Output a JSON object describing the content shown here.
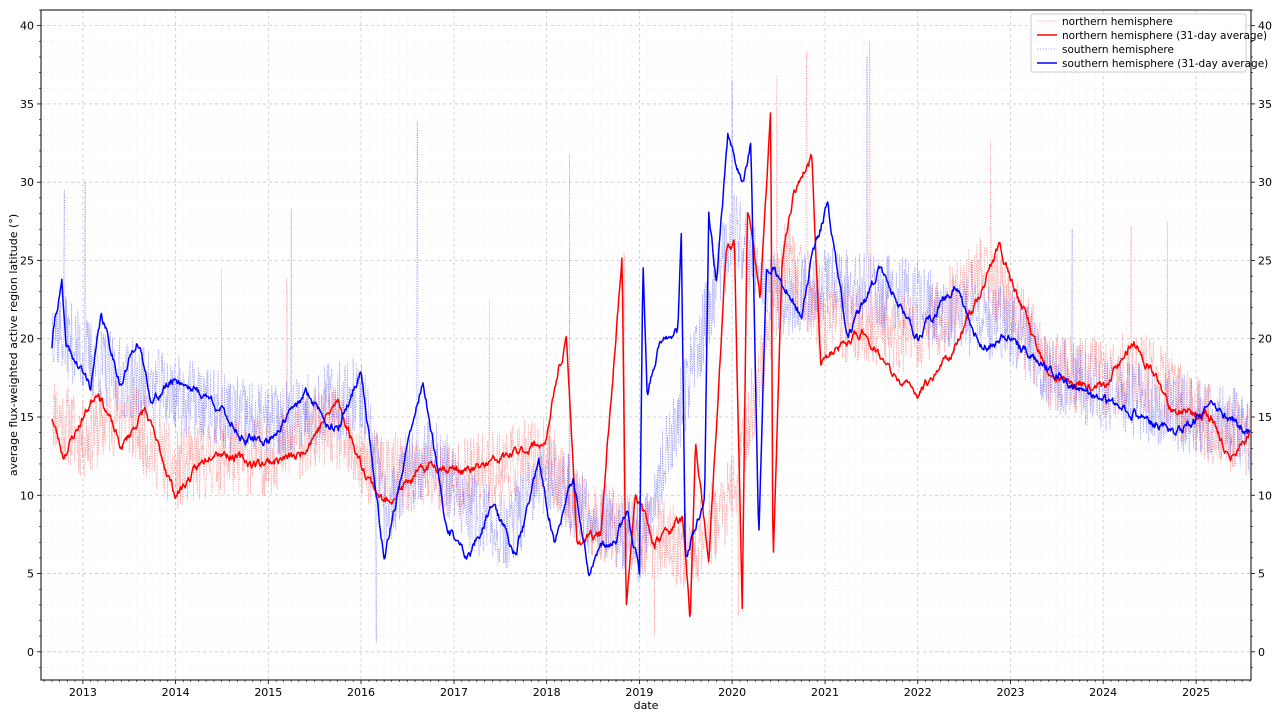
{
  "chart_data": {
    "type": "line",
    "title": "",
    "xlabel": "date",
    "ylabel": "average flux-weighted active region latitude (°)",
    "xlim": [
      "2012-07-20",
      "2025-08-05"
    ],
    "ylim": [
      -1.8,
      41
    ],
    "grid": true,
    "legend_position": "top-right",
    "x_ticks": [
      "2013",
      "2014",
      "2015",
      "2016",
      "2017",
      "2018",
      "2019",
      "2020",
      "2021",
      "2022",
      "2023",
      "2024",
      "2025"
    ],
    "y_ticks": [
      "0",
      "5",
      "10",
      "15",
      "20",
      "25",
      "30",
      "35",
      "40"
    ],
    "series": [
      {
        "name": "northern hemisphere",
        "color": "#ff0000",
        "style": "dotted-thin",
        "seed": 11,
        "noise": 2.6,
        "spikes": [
          [
            "2014-07-01",
            24.5
          ],
          [
            "2015-03-15",
            23.8
          ],
          [
            "2017-05-20",
            22.5
          ],
          [
            "2018-11-02",
            25.5
          ],
          [
            "2019-03-01",
            1.0
          ],
          [
            "2020-01-25",
            2.3
          ],
          [
            "2020-06-25",
            36.8
          ],
          [
            "2020-10-20",
            38.3
          ],
          [
            "2021-06-25",
            39.0
          ],
          [
            "2022-10-15",
            32.8
          ],
          [
            "2024-04-20",
            27.2
          ],
          [
            "2024-09-10",
            27.5
          ]
        ],
        "anchors": [
          [
            "2012-09-01",
            15.5
          ],
          [
            "2013-01-01",
            13.5
          ],
          [
            "2013-06-01",
            15.5
          ],
          [
            "2014-01-01",
            11.5
          ],
          [
            "2014-06-01",
            12.5
          ],
          [
            "2015-01-01",
            12.5
          ],
          [
            "2015-09-01",
            14.5
          ],
          [
            "2016-01-01",
            12.0
          ],
          [
            "2016-06-01",
            11.5
          ],
          [
            "2017-01-01",
            11.0
          ],
          [
            "2017-08-01",
            12.0
          ],
          [
            "2018-01-01",
            12.5
          ],
          [
            "2018-06-01",
            8.5
          ],
          [
            "2019-01-01",
            7.5
          ],
          [
            "2019-08-01",
            6.5
          ],
          [
            "2020-01-01",
            10.0
          ],
          [
            "2020-08-01",
            25.5
          ],
          [
            "2021-01-01",
            21.0
          ],
          [
            "2021-06-01",
            21.0
          ],
          [
            "2022-01-01",
            20.0
          ],
          [
            "2022-10-01",
            24.5
          ],
          [
            "2023-06-01",
            18.0
          ],
          [
            "2024-01-01",
            17.5
          ],
          [
            "2024-06-01",
            18.0
          ],
          [
            "2025-01-01",
            15.0
          ],
          [
            "2025-07-31",
            13.5
          ]
        ]
      },
      {
        "name": "northern hemisphere (31-day average)",
        "color": "#ff0000",
        "style": "solid",
        "seed": 23,
        "noise": 0.9,
        "anchors": [
          [
            "2012-09-01",
            15.0
          ],
          [
            "2012-10-15",
            12.5
          ],
          [
            "2013-03-01",
            16.8
          ],
          [
            "2013-06-01",
            13.0
          ],
          [
            "2013-09-01",
            15.5
          ],
          [
            "2014-01-01",
            10.0
          ],
          [
            "2014-06-01",
            13.0
          ],
          [
            "2014-11-01",
            12.0
          ],
          [
            "2015-05-01",
            12.5
          ],
          [
            "2015-10-01",
            16.0
          ],
          [
            "2016-01-01",
            12.0
          ],
          [
            "2016-04-01",
            9.5
          ],
          [
            "2016-10-01",
            12.0
          ],
          [
            "2017-03-01",
            11.5
          ],
          [
            "2017-08-01",
            12.5
          ],
          [
            "2018-01-01",
            13.5
          ],
          [
            "2018-02-15",
            18.0
          ],
          [
            "2018-03-20",
            19.8
          ],
          [
            "2018-05-01",
            7.0
          ],
          [
            "2018-08-01",
            7.5
          ],
          [
            "2018-10-25",
            25.3
          ],
          [
            "2018-11-10",
            2.8
          ],
          [
            "2018-12-15",
            10.2
          ],
          [
            "2019-03-01",
            7.0
          ],
          [
            "2019-06-20",
            8.5
          ],
          [
            "2019-07-20",
            1.7
          ],
          [
            "2019-08-10",
            13.5
          ],
          [
            "2019-10-01",
            5.5
          ],
          [
            "2019-12-10",
            26.0
          ],
          [
            "2020-01-10",
            26.0
          ],
          [
            "2020-02-10",
            2.5
          ],
          [
            "2020-03-01",
            28.5
          ],
          [
            "2020-04-20",
            22.5
          ],
          [
            "2020-06-01",
            34.5
          ],
          [
            "2020-06-10",
            5.2
          ],
          [
            "2020-07-15",
            25.0
          ],
          [
            "2020-09-01",
            29.5
          ],
          [
            "2020-11-10",
            31.5
          ],
          [
            "2020-12-15",
            18.5
          ],
          [
            "2021-06-01",
            20.5
          ],
          [
            "2021-10-01",
            17.5
          ],
          [
            "2022-01-01",
            16.5
          ],
          [
            "2022-06-01",
            19.5
          ],
          [
            "2022-10-01",
            24.0
          ],
          [
            "2022-11-15",
            26.0
          ],
          [
            "2023-06-01",
            17.5
          ],
          [
            "2024-01-01",
            17.0
          ],
          [
            "2024-05-01",
            19.8
          ],
          [
            "2024-10-01",
            15.5
          ],
          [
            "2025-03-01",
            15.0
          ],
          [
            "2025-05-15",
            12.3
          ],
          [
            "2025-07-31",
            13.8
          ]
        ]
      },
      {
        "name": "southern hemisphere",
        "color": "#0000ff",
        "style": "dotted-thin",
        "seed": 37,
        "noise": 2.6,
        "spikes": [
          [
            "2012-10-20",
            29.5
          ],
          [
            "2013-01-10",
            30.0
          ],
          [
            "2015-04-01",
            28.3
          ],
          [
            "2016-03-01",
            0.6
          ],
          [
            "2016-08-10",
            33.9
          ],
          [
            "2018-04-01",
            31.8
          ],
          [
            "2020-01-01",
            36.5
          ],
          [
            "2021-06-15",
            38.0
          ],
          [
            "2022-08-01",
            25.0
          ],
          [
            "2023-09-01",
            27.0
          ]
        ],
        "anchors": [
          [
            "2012-09-01",
            21.0
          ],
          [
            "2013-01-01",
            19.0
          ],
          [
            "2013-06-01",
            17.5
          ],
          [
            "2014-01-01",
            16.5
          ],
          [
            "2014-06-01",
            15.5
          ],
          [
            "2015-01-01",
            14.5
          ],
          [
            "2015-06-01",
            15.5
          ],
          [
            "2016-01-01",
            16.5
          ],
          [
            "2016-04-01",
            9.0
          ],
          [
            "2016-10-01",
            13.0
          ],
          [
            "2017-03-01",
            9.0
          ],
          [
            "2017-08-01",
            7.5
          ],
          [
            "2018-01-01",
            11.5
          ],
          [
            "2018-06-01",
            9.0
          ],
          [
            "2019-01-01",
            7.0
          ],
          [
            "2019-06-01",
            15.0
          ],
          [
            "2020-01-01",
            27.0
          ],
          [
            "2020-08-01",
            22.5
          ],
          [
            "2021-01-01",
            23.5
          ],
          [
            "2021-06-01",
            23.0
          ],
          [
            "2022-01-01",
            22.5
          ],
          [
            "2022-06-01",
            21.5
          ],
          [
            "2023-01-01",
            21.0
          ],
          [
            "2023-06-01",
            18.0
          ],
          [
            "2024-01-01",
            16.5
          ],
          [
            "2024-06-01",
            16.0
          ],
          [
            "2025-01-01",
            15.0
          ],
          [
            "2025-07-31",
            14.0
          ]
        ]
      },
      {
        "name": "southern hemisphere (31-day average)",
        "color": "#0000ff",
        "style": "solid",
        "seed": 41,
        "noise": 0.9,
        "anchors": [
          [
            "2012-09-01",
            19.5
          ],
          [
            "2012-09-15",
            21.5
          ],
          [
            "2012-10-10",
            23.5
          ],
          [
            "2012-10-25",
            19.5
          ],
          [
            "2013-02-01",
            17.0
          ],
          [
            "2013-03-15",
            21.5
          ],
          [
            "2013-06-01",
            17.0
          ],
          [
            "2013-08-01",
            20.0
          ],
          [
            "2013-10-01",
            16.0
          ],
          [
            "2014-01-01",
            17.5
          ],
          [
            "2014-06-01",
            16.0
          ],
          [
            "2014-10-01",
            13.5
          ],
          [
            "2015-01-01",
            13.5
          ],
          [
            "2015-06-01",
            16.5
          ],
          [
            "2015-10-01",
            14.0
          ],
          [
            "2016-01-01",
            18.0
          ],
          [
            "2016-04-01",
            6.0
          ],
          [
            "2016-07-01",
            13.0
          ],
          [
            "2016-09-01",
            17.3
          ],
          [
            "2016-12-01",
            8.0
          ],
          [
            "2017-03-01",
            6.0
          ],
          [
            "2017-06-01",
            9.5
          ],
          [
            "2017-09-01",
            6.2
          ],
          [
            "2017-12-01",
            12.0
          ],
          [
            "2018-02-01",
            7.0
          ],
          [
            "2018-04-15",
            11.0
          ],
          [
            "2018-06-15",
            5.0
          ],
          [
            "2018-08-01",
            6.5
          ],
          [
            "2018-10-01",
            7.0
          ],
          [
            "2018-11-15",
            9.3
          ],
          [
            "2019-01-01",
            5.0
          ],
          [
            "2019-01-15",
            25.5
          ],
          [
            "2019-02-01",
            16.3
          ],
          [
            "2019-03-15",
            19.5
          ],
          [
            "2019-06-01",
            20.5
          ],
          [
            "2019-06-15",
            26.5
          ],
          [
            "2019-07-01",
            6.0
          ],
          [
            "2019-09-15",
            9.5
          ],
          [
            "2019-10-01",
            28.0
          ],
          [
            "2019-11-01",
            23.5
          ],
          [
            "2019-12-15",
            33.0
          ],
          [
            "2020-02-15",
            30.0
          ],
          [
            "2020-03-15",
            32.5
          ],
          [
            "2020-04-15",
            7.0
          ],
          [
            "2020-05-15",
            25.0
          ],
          [
            "2020-07-01",
            24.0
          ],
          [
            "2020-10-01",
            21.5
          ],
          [
            "2020-11-15",
            25.5
          ],
          [
            "2021-01-10",
            28.5
          ],
          [
            "2021-04-01",
            20.0
          ],
          [
            "2021-08-01",
            24.5
          ],
          [
            "2022-01-01",
            20.0
          ],
          [
            "2022-06-01",
            23.5
          ],
          [
            "2022-09-01",
            19.5
          ],
          [
            "2023-01-01",
            20.0
          ],
          [
            "2023-06-01",
            18.0
          ],
          [
            "2024-01-01",
            16.0
          ],
          [
            "2024-06-01",
            15.0
          ],
          [
            "2024-10-01",
            14.0
          ],
          [
            "2025-03-01",
            15.5
          ],
          [
            "2025-07-31",
            14.0
          ]
        ]
      }
    ]
  }
}
